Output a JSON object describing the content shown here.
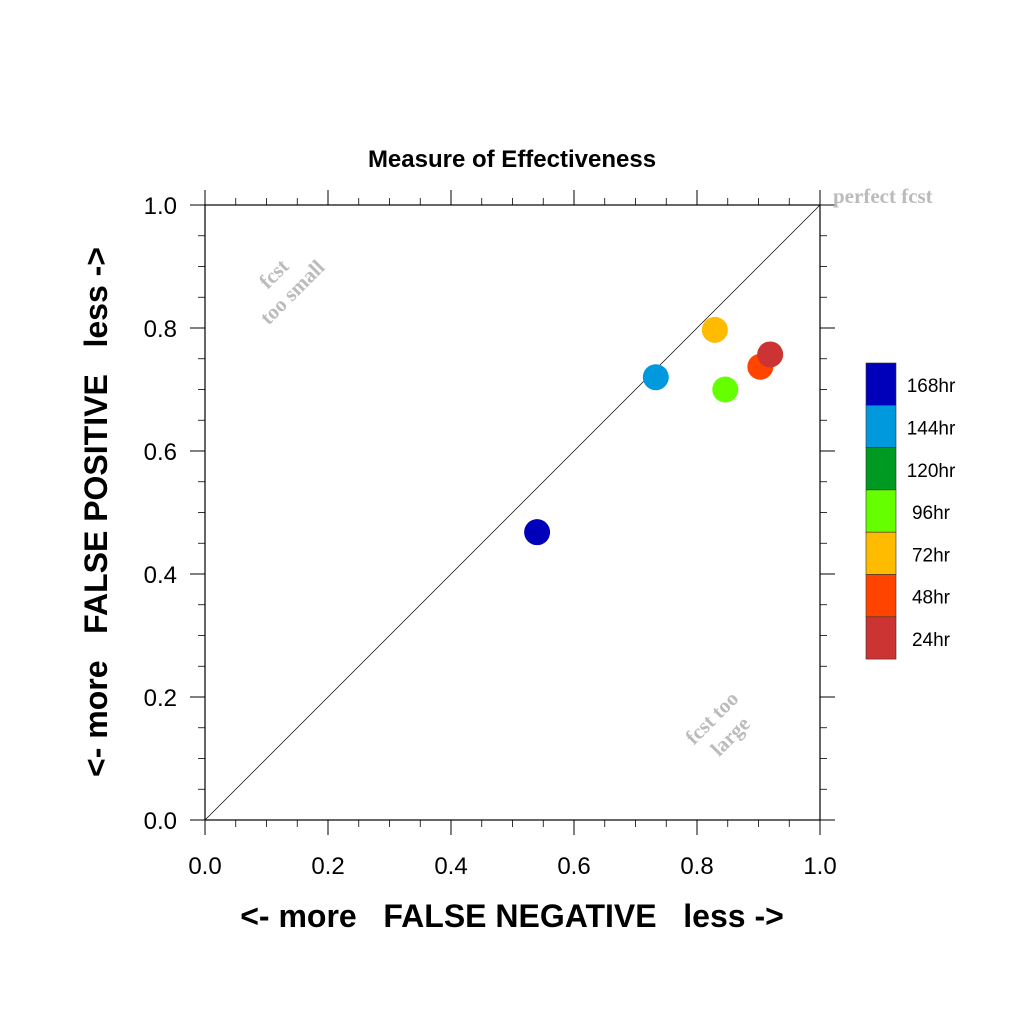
{
  "chart_data": {
    "type": "scatter",
    "title": "Measure of Effectiveness",
    "xlabel": "<- more   FALSE NEGATIVE   less ->",
    "ylabel": "<- more   FALSE POSITIVE   less ->",
    "xlim": [
      0.0,
      1.0
    ],
    "ylim": [
      0.0,
      1.0
    ],
    "xticks": [
      "0.0",
      "0.2",
      "0.4",
      "0.6",
      "0.8",
      "1.0"
    ],
    "yticks": [
      "0.0",
      "0.2",
      "0.4",
      "0.6",
      "0.8",
      "1.0"
    ],
    "grid": false,
    "reference_line": {
      "from": [
        0,
        0
      ],
      "to": [
        1,
        1
      ],
      "label": "perfect fcst"
    },
    "annotations": [
      {
        "lines": [
          "fcst",
          "too small"
        ]
      },
      {
        "lines": [
          "fcst too",
          "large"
        ]
      }
    ],
    "series": [
      {
        "name": "168hr",
        "x": 0.54,
        "y": 0.468,
        "color": "#0000BB"
      },
      {
        "name": "144hr",
        "x": 0.733,
        "y": 0.72,
        "color": "#0099DD"
      },
      {
        "name": "96hr",
        "x": 0.846,
        "y": 0.7,
        "color": "#66FF00"
      },
      {
        "name": "72hr",
        "x": 0.829,
        "y": 0.797,
        "color": "#FFBB00"
      },
      {
        "name": "48hr",
        "x": 0.903,
        "y": 0.737,
        "color": "#FF4400"
      },
      {
        "name": "24hr",
        "x": 0.919,
        "y": 0.757,
        "color": "#CC3333"
      }
    ],
    "legend": {
      "placement": "right",
      "entries": [
        {
          "label": "168hr",
          "color": "#0000BB"
        },
        {
          "label": "144hr",
          "color": "#0099DD"
        },
        {
          "label": "120hr",
          "color": "#009922"
        },
        {
          "label": "96hr",
          "color": "#66FF00"
        },
        {
          "label": "72hr",
          "color": "#FFBB00"
        },
        {
          "label": "48hr",
          "color": "#FF4400"
        },
        {
          "label": "24hr",
          "color": "#CC3333"
        }
      ]
    }
  }
}
